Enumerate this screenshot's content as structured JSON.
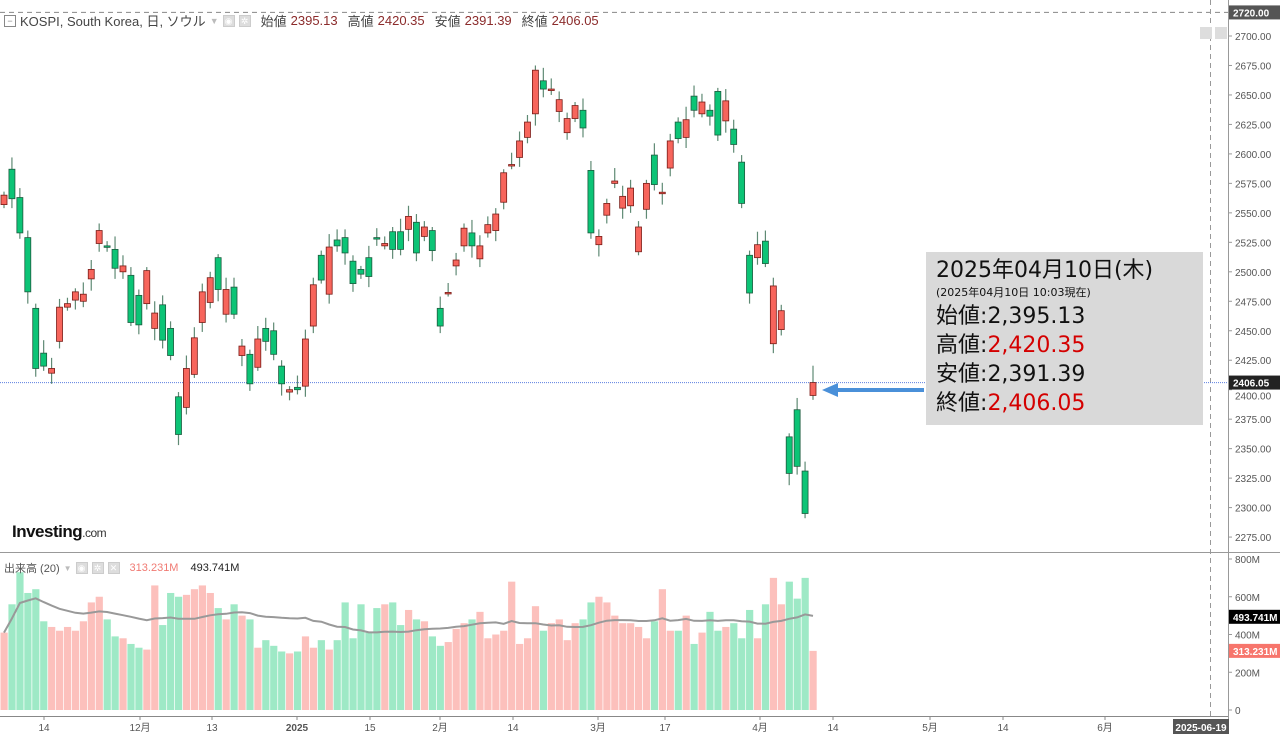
{
  "header": {
    "symbol": "KOSPI, South Korea, 日, ソウル",
    "open_label": "始値",
    "open": "2395.13",
    "high_label": "高値",
    "high": "2420.35",
    "low_label": "安値",
    "low": "2391.39",
    "close_label": "終値",
    "close": "2406.05"
  },
  "volume_legend": {
    "title": "出来高 (20)",
    "value1": "313.231M",
    "value2": "493.741M"
  },
  "logo": {
    "main": "Investing",
    "suffix": ".com"
  },
  "info_box": {
    "date": "2025年04月10日(木)",
    "sub": "(2025年04月10日 10:03現在)",
    "open_label": "始値",
    "open": "2,395.13",
    "high_label": "高値",
    "high": "2,420.35",
    "low_label": "安値",
    "low": "2,391.39",
    "close_label": "終値",
    "close": "2,406.05",
    "sep": ":"
  },
  "colors": {
    "up": "#f7655c",
    "down": "#0cc476",
    "vol_up": "#fcc0bc",
    "vol_down": "#9ee9c6",
    "price_line": "#5b7fe0",
    "arrow": "#4a90d9"
  },
  "chart_data": [
    {
      "type": "candlestick",
      "title": "KOSPI, South Korea, 日",
      "ylim": [
        2262,
        2728
      ],
      "y_ticks": [
        "2700.00",
        "2675.00",
        "2650.00",
        "2625.00",
        "2600.00",
        "2575.00",
        "2550.00",
        "2525.00",
        "2500.00",
        "2475.00",
        "2450.00",
        "2425.00",
        "2400.00",
        "2375.00",
        "2350.00",
        "2325.00",
        "2300.00",
        "2275.00"
      ],
      "y_tick_values": [
        2700,
        2675,
        2650,
        2625,
        2600,
        2575,
        2550,
        2525,
        2500,
        2475,
        2450,
        2425,
        2400,
        2375,
        2350,
        2325,
        2300,
        2275
      ],
      "crosshair_label": "2720.00",
      "crosshair_value": 2720,
      "last_price_label": "2406.05",
      "last_price": 2406.05,
      "x_ticks": [
        "14",
        "12月",
        "13",
        "2025",
        "15",
        "2月",
        "14",
        "3月",
        "17",
        "4月",
        "14",
        "5月",
        "14",
        "6月"
      ],
      "crosshair_date": "2025-06-19",
      "candles_oc": [
        [
          2557,
          2565
        ],
        [
          2587,
          2562
        ],
        [
          2563,
          2533
        ],
        [
          2529,
          2483
        ],
        [
          2469,
          2418
        ],
        [
          2431,
          2420
        ],
        [
          2414,
          2418
        ],
        [
          2441,
          2470
        ],
        [
          2470,
          2473
        ],
        [
          2476,
          2483
        ],
        [
          2475,
          2481
        ],
        [
          2494,
          2502
        ],
        [
          2524,
          2535
        ],
        [
          2522,
          2521
        ],
        [
          2519,
          2503
        ],
        [
          2500,
          2505
        ],
        [
          2497,
          2457
        ],
        [
          2480,
          2455
        ],
        [
          2473,
          2501
        ],
        [
          2452,
          2465
        ],
        [
          2472,
          2442
        ],
        [
          2452,
          2429
        ],
        [
          2394,
          2362
        ],
        [
          2385,
          2418
        ],
        [
          2413,
          2444
        ],
        [
          2457,
          2483
        ],
        [
          2474,
          2495
        ],
        [
          2512,
          2485
        ],
        [
          2464,
          2485
        ],
        [
          2487,
          2464
        ],
        [
          2429,
          2437
        ],
        [
          2430,
          2405
        ],
        [
          2419,
          2443
        ],
        [
          2452,
          2441
        ],
        [
          2450,
          2430
        ],
        [
          2420,
          2405
        ],
        [
          2398,
          2400
        ],
        [
          2402,
          2400
        ],
        [
          2403,
          2443
        ],
        [
          2454,
          2489
        ],
        [
          2514,
          2493
        ],
        [
          2481,
          2521
        ],
        [
          2527,
          2522
        ],
        [
          2529,
          2516
        ],
        [
          2509,
          2490
        ],
        [
          2502,
          2498
        ],
        [
          2512,
          2496
        ],
        [
          2529,
          2528
        ],
        [
          2522,
          2524
        ],
        [
          2534,
          2519
        ],
        [
          2534,
          2519
        ],
        [
          2536,
          2547
        ],
        [
          2542,
          2516
        ],
        [
          2530,
          2538
        ],
        [
          2535,
          2518
        ],
        [
          2469,
          2454
        ],
        [
          2482,
          2482.5
        ],
        [
          2505,
          2510
        ],
        [
          2522,
          2537
        ],
        [
          2533,
          2522
        ],
        [
          2511,
          2522
        ],
        [
          2533,
          2540
        ],
        [
          2535,
          2549
        ],
        [
          2559,
          2584
        ],
        [
          2590,
          2591
        ],
        [
          2597,
          2611
        ],
        [
          2614,
          2627
        ],
        [
          2634,
          2671
        ],
        [
          2662,
          2655
        ],
        [
          2654,
          2655
        ],
        [
          2636,
          2646
        ],
        [
          2618,
          2630
        ],
        [
          2630,
          2641
        ],
        [
          2637,
          2622
        ],
        [
          2586,
          2533
        ],
        [
          2523,
          2530
        ],
        [
          2548,
          2558
        ],
        [
          2575,
          2577
        ],
        [
          2554,
          2564
        ],
        [
          2556,
          2571
        ],
        [
          2517,
          2538
        ],
        [
          2553,
          2575
        ],
        [
          2599,
          2574
        ],
        [
          2567,
          2567.5
        ],
        [
          2588,
          2611
        ],
        [
          2627,
          2613
        ],
        [
          2614,
          2629
        ],
        [
          2649,
          2637
        ],
        [
          2634,
          2644
        ],
        [
          2637,
          2632
        ],
        [
          2653,
          2616
        ],
        [
          2628,
          2645
        ],
        [
          2621,
          2608
        ],
        [
          2593,
          2558
        ],
        [
          2514,
          2482
        ],
        [
          2512,
          2523
        ],
        [
          2526,
          2507
        ],
        [
          2439,
          2488
        ],
        [
          2451,
          2467
        ],
        [
          2360,
          2329
        ],
        [
          2383,
          2335
        ],
        [
          2331,
          2295
        ],
        [
          2395.13,
          2406.05
        ]
      ]
    },
    {
      "type": "bar",
      "title": "出来高 (20)",
      "unit": "M",
      "ylim": [
        0,
        800
      ],
      "y_ticks": [
        "800M",
        "600M",
        "400M",
        "200M",
        "0"
      ],
      "y_tick_values": [
        800,
        600,
        400,
        200,
        0
      ],
      "ma_label": "493.741M",
      "ma_value": 493.741,
      "last_label": "313.231M",
      "last_value": 313.231,
      "values": [
        410,
        560,
        730,
        620,
        640,
        470,
        440,
        420,
        440,
        420,
        470,
        570,
        600,
        480,
        390,
        380,
        350,
        330,
        320,
        660,
        450,
        620,
        600,
        610,
        640,
        660,
        620,
        540,
        480,
        560,
        500,
        480,
        330,
        370,
        340,
        310,
        300,
        310,
        390,
        330,
        370,
        320,
        370,
        570,
        380,
        560,
        410,
        540,
        560,
        570,
        450,
        530,
        480,
        470,
        390,
        340,
        360,
        430,
        460,
        480,
        520,
        380,
        400,
        420,
        680,
        350,
        380,
        550,
        420,
        460,
        480,
        370,
        460,
        480,
        570,
        600,
        570,
        500,
        460,
        460,
        440,
        380,
        470,
        640,
        420,
        420,
        500,
        350,
        410,
        520,
        420,
        440,
        460,
        380,
        530,
        380,
        560,
        700,
        560,
        680,
        590,
        700,
        313.231
      ]
    }
  ]
}
